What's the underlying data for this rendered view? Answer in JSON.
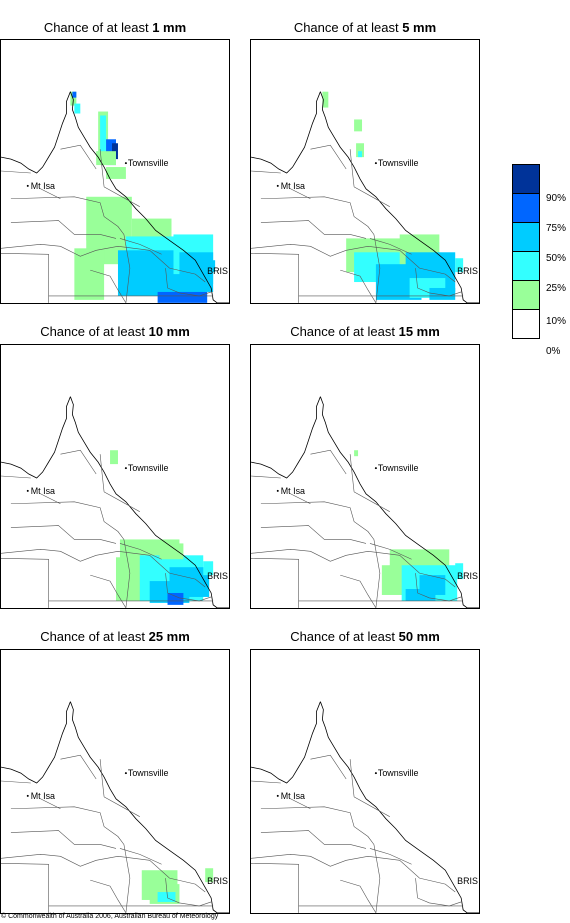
{
  "panels": [
    {
      "title_prefix": "Chance of at least ",
      "threshold": "1 mm"
    },
    {
      "title_prefix": "Chance of at least ",
      "threshold": "5 mm"
    },
    {
      "title_prefix": "Chance of at least ",
      "threshold": "10 mm"
    },
    {
      "title_prefix": "Chance of at least ",
      "threshold": "15 mm"
    },
    {
      "title_prefix": "Chance of at least ",
      "threshold": "25 mm"
    },
    {
      "title_prefix": "Chance of at least ",
      "threshold": "50 mm"
    }
  ],
  "places": {
    "townsville": "Townsville",
    "mt_isa": "Mt Isa",
    "bris": "BRIS"
  },
  "legend": {
    "bins": [
      {
        "label": "90%",
        "color": "#003399"
      },
      {
        "label": "75%",
        "color": "#0066ff"
      },
      {
        "label": "50%",
        "color": "#00ccff"
      },
      {
        "label": "25%",
        "color": "#33ffff"
      },
      {
        "label": "10%",
        "color": "#99ff99"
      },
      {
        "label": "0%",
        "color": "#ffffff"
      }
    ]
  },
  "footer": "© Commonwealth of Australia 2006, Australian Bureau of Meteorology"
}
